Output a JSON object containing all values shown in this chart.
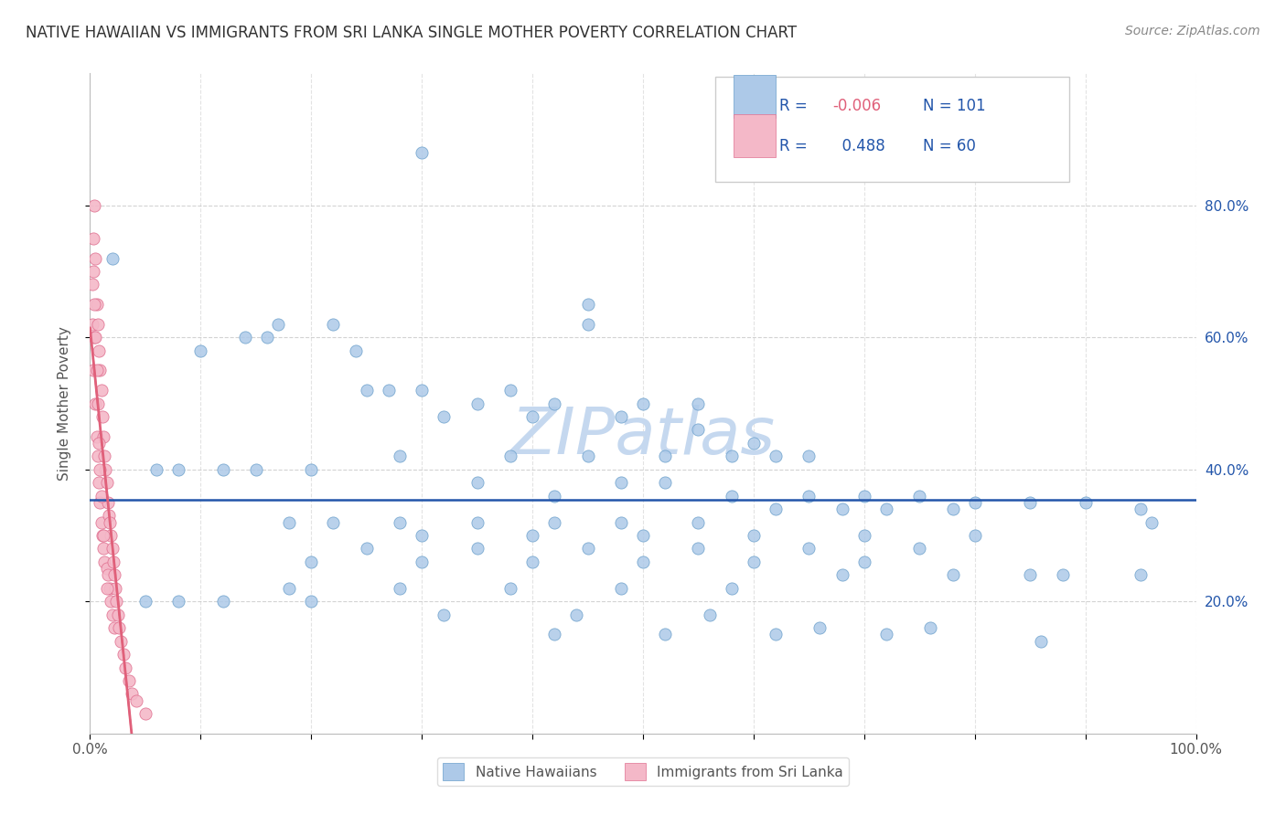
{
  "title": "NATIVE HAWAIIAN VS IMMIGRANTS FROM SRI LANKA SINGLE MOTHER POVERTY CORRELATION CHART",
  "source": "Source: ZipAtlas.com",
  "ylabel": "Single Mother Poverty",
  "xlim": [
    0,
    1
  ],
  "ylim": [
    0,
    1
  ],
  "blue_R": -0.006,
  "blue_N": 101,
  "pink_R": 0.488,
  "pink_N": 60,
  "blue_color": "#adc9e8",
  "pink_color": "#f4b8c8",
  "blue_edge_color": "#6a9fcb",
  "pink_edge_color": "#e07090",
  "blue_line_color": "#2255aa",
  "pink_line_color": "#e0607a",
  "grid_color": "#c8c8c8",
  "background_color": "#ffffff",
  "watermark": "ZIPatlas",
  "watermark_color": "#c5d8ef",
  "legend_label_blue": "Native Hawaiians",
  "legend_label_pink": "Immigrants from Sri Lanka",
  "title_color": "#333333",
  "source_color": "#888888",
  "axis_label_color": "#555555",
  "tick_color": "#555555",
  "legend_text_color": "#2255aa",
  "blue_points_x": [
    0.3,
    0.02,
    0.45,
    0.45,
    0.17,
    0.22,
    0.24,
    0.1,
    0.14,
    0.16,
    0.25,
    0.3,
    0.38,
    0.27,
    0.35,
    0.42,
    0.5,
    0.55,
    0.48,
    0.4,
    0.32,
    0.55,
    0.6,
    0.65,
    0.52,
    0.58,
    0.62,
    0.45,
    0.38,
    0.28,
    0.2,
    0.15,
    0.12,
    0.08,
    0.06,
    0.35,
    0.42,
    0.48,
    0.52,
    0.58,
    0.65,
    0.7,
    0.75,
    0.8,
    0.85,
    0.9,
    0.95,
    0.72,
    0.78,
    0.68,
    0.62,
    0.55,
    0.48,
    0.42,
    0.35,
    0.28,
    0.22,
    0.18,
    0.3,
    0.4,
    0.5,
    0.6,
    0.7,
    0.8,
    0.25,
    0.35,
    0.45,
    0.55,
    0.65,
    0.75,
    0.2,
    0.3,
    0.4,
    0.5,
    0.6,
    0.7,
    0.85,
    0.95,
    0.88,
    0.78,
    0.68,
    0.58,
    0.48,
    0.38,
    0.28,
    0.18,
    0.08,
    0.05,
    0.12,
    0.2,
    0.32,
    0.44,
    0.56,
    0.66,
    0.76,
    0.86,
    0.96,
    0.42,
    0.52,
    0.62,
    0.72
  ],
  "blue_points_y": [
    0.88,
    0.72,
    0.65,
    0.62,
    0.62,
    0.62,
    0.58,
    0.58,
    0.6,
    0.6,
    0.52,
    0.52,
    0.52,
    0.52,
    0.5,
    0.5,
    0.5,
    0.5,
    0.48,
    0.48,
    0.48,
    0.46,
    0.44,
    0.42,
    0.42,
    0.42,
    0.42,
    0.42,
    0.42,
    0.42,
    0.4,
    0.4,
    0.4,
    0.4,
    0.4,
    0.38,
    0.36,
    0.38,
    0.38,
    0.36,
    0.36,
    0.36,
    0.36,
    0.35,
    0.35,
    0.35,
    0.34,
    0.34,
    0.34,
    0.34,
    0.34,
    0.32,
    0.32,
    0.32,
    0.32,
    0.32,
    0.32,
    0.32,
    0.3,
    0.3,
    0.3,
    0.3,
    0.3,
    0.3,
    0.28,
    0.28,
    0.28,
    0.28,
    0.28,
    0.28,
    0.26,
    0.26,
    0.26,
    0.26,
    0.26,
    0.26,
    0.24,
    0.24,
    0.24,
    0.24,
    0.24,
    0.22,
    0.22,
    0.22,
    0.22,
    0.22,
    0.2,
    0.2,
    0.2,
    0.2,
    0.18,
    0.18,
    0.18,
    0.16,
    0.16,
    0.14,
    0.32,
    0.15,
    0.15,
    0.15,
    0.15
  ],
  "pink_points_x": [
    0.002,
    0.002,
    0.003,
    0.003,
    0.004,
    0.004,
    0.005,
    0.005,
    0.006,
    0.006,
    0.007,
    0.007,
    0.008,
    0.008,
    0.009,
    0.009,
    0.01,
    0.01,
    0.011,
    0.011,
    0.012,
    0.012,
    0.013,
    0.013,
    0.014,
    0.015,
    0.015,
    0.016,
    0.016,
    0.017,
    0.018,
    0.018,
    0.019,
    0.019,
    0.02,
    0.02,
    0.021,
    0.022,
    0.022,
    0.023,
    0.024,
    0.025,
    0.026,
    0.028,
    0.03,
    0.032,
    0.035,
    0.038,
    0.042,
    0.05,
    0.003,
    0.004,
    0.005,
    0.006,
    0.007,
    0.008,
    0.009,
    0.01,
    0.012,
    0.015
  ],
  "pink_points_y": [
    0.68,
    0.62,
    0.75,
    0.55,
    0.8,
    0.6,
    0.72,
    0.5,
    0.65,
    0.45,
    0.62,
    0.42,
    0.58,
    0.38,
    0.55,
    0.35,
    0.52,
    0.32,
    0.48,
    0.3,
    0.45,
    0.28,
    0.42,
    0.26,
    0.4,
    0.38,
    0.25,
    0.35,
    0.24,
    0.33,
    0.32,
    0.22,
    0.3,
    0.2,
    0.28,
    0.18,
    0.26,
    0.24,
    0.16,
    0.22,
    0.2,
    0.18,
    0.16,
    0.14,
    0.12,
    0.1,
    0.08,
    0.06,
    0.05,
    0.03,
    0.7,
    0.65,
    0.6,
    0.55,
    0.5,
    0.44,
    0.4,
    0.36,
    0.3,
    0.22
  ]
}
